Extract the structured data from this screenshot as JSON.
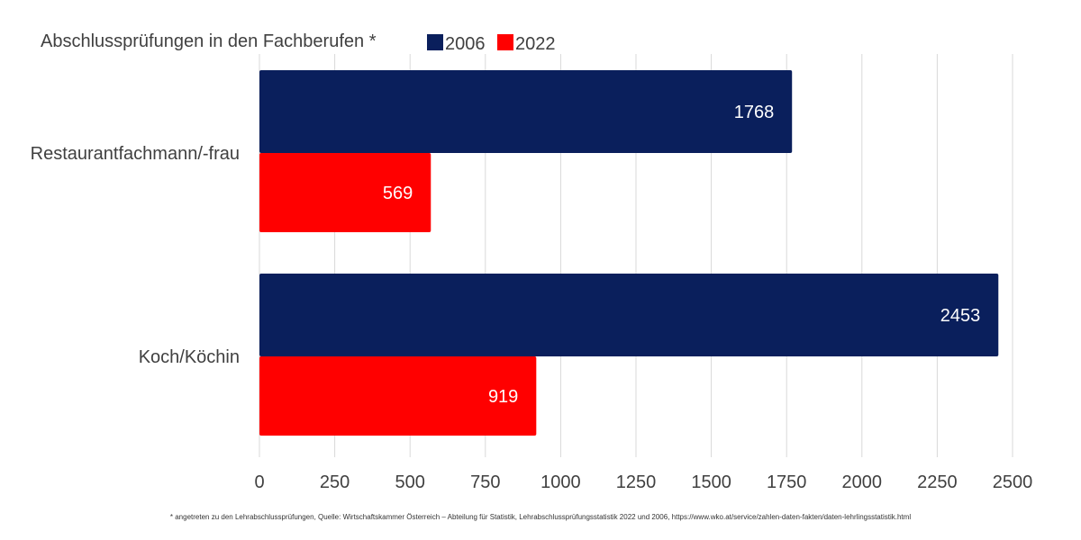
{
  "chart_data": {
    "type": "bar",
    "orientation": "horizontal",
    "title": "Abschlussprüfungen in den Fachberufen *",
    "categories": [
      "Restaurantfachmann/-frau",
      "Koch/Köchin"
    ],
    "series": [
      {
        "name": "2006",
        "values": [
          1768,
          2453
        ],
        "color": "#0a1f5c"
      },
      {
        "name": "2022",
        "values": [
          569,
          919
        ],
        "color": "#ff0000"
      }
    ],
    "xlim": [
      0,
      2500
    ],
    "xticks": [
      0,
      250,
      500,
      750,
      1000,
      1250,
      1500,
      1750,
      2000,
      2250,
      2500
    ],
    "grid": true,
    "legend": "top",
    "data_labels": true
  },
  "footnote": "* angetreten zu den Lehrabschlussprüfungen, Quelle: Wirtschaftskammer Österreich – Abteilung für Statistik, Lehrabschlussprüfungsstatistik 2022 und 2006, https://www.wko.at/service/zahlen-daten-fakten/daten-lehrlingsstatistik.html"
}
